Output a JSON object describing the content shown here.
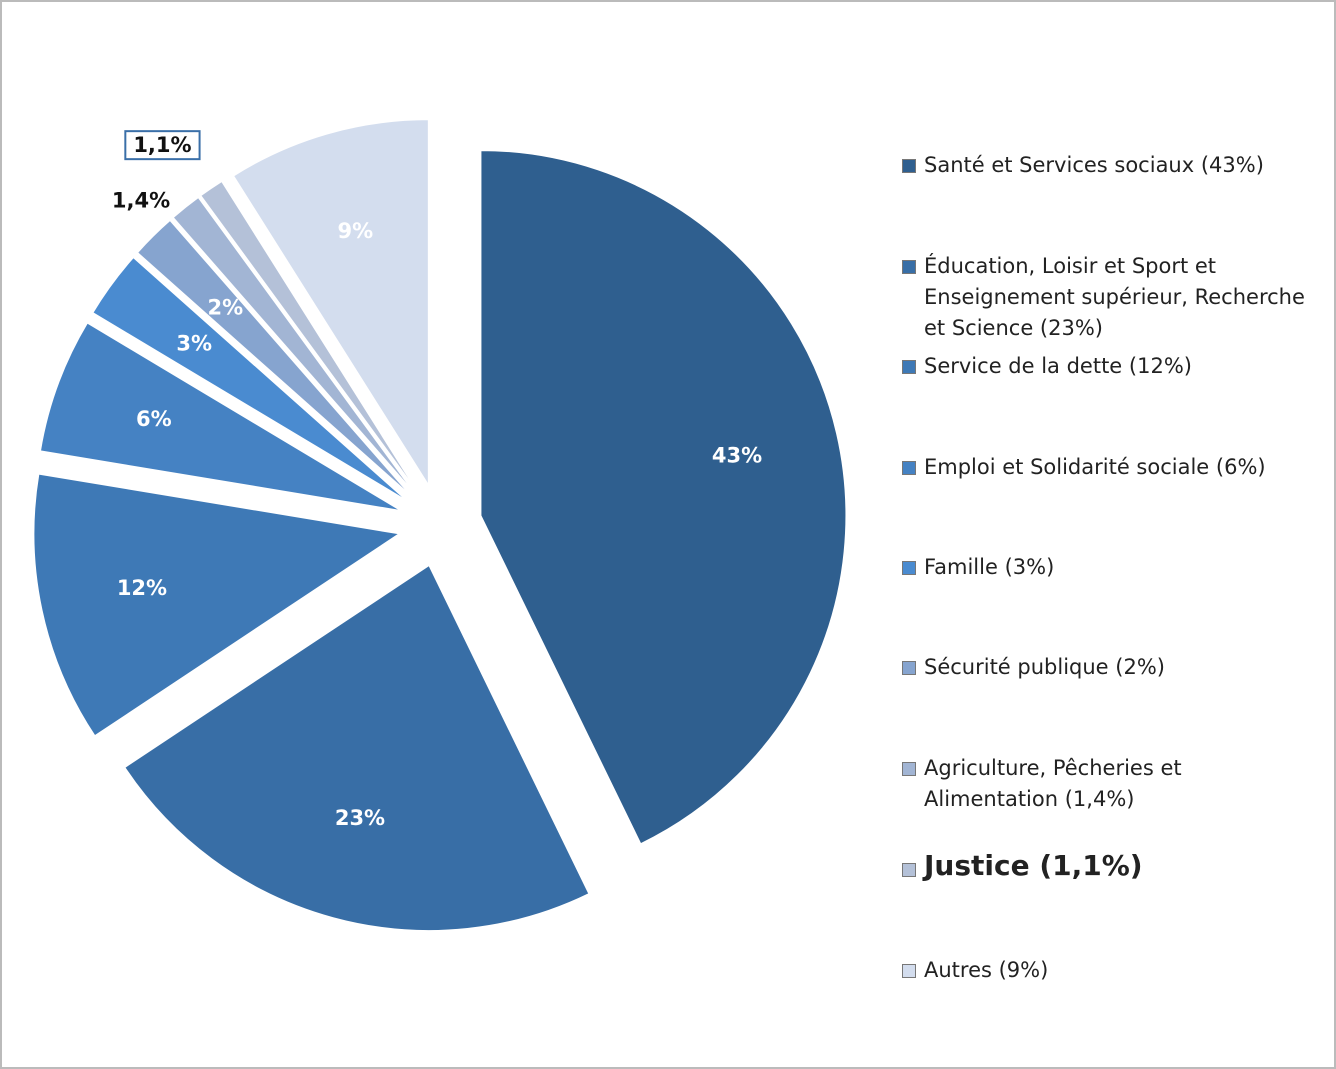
{
  "chart_data": {
    "type": "pie",
    "categories": [
      "Santé et Services sociaux (43%)",
      "Éducation, Loisir et Sport et Enseignement supérieur, Recherche et Science (23%)",
      "Service de la dette (12%)",
      "Emploi et Solidarité sociale (6%)",
      "Famille (3%)",
      "Sécurité publique (2%)",
      "Agriculture, Pêcheries et Alimentation (1,4%)",
      "Justice (1,1%)",
      "Autres (9%)"
    ],
    "values": [
      43,
      23,
      12,
      6,
      3,
      2,
      1.4,
      1.1,
      9
    ],
    "value_labels": [
      "43%",
      "23%",
      "12%",
      "6%",
      "3%",
      "2%",
      "1,4%",
      "1,1%",
      "9%"
    ],
    "colors": [
      "#2f5f8f",
      "#386ea6",
      "#3e79b6",
      "#4582c3",
      "#4a8bd0",
      "#86a4cf",
      "#a2b5d4",
      "#b4c1d8",
      "#d3ddee"
    ],
    "highlight": 7
  }
}
